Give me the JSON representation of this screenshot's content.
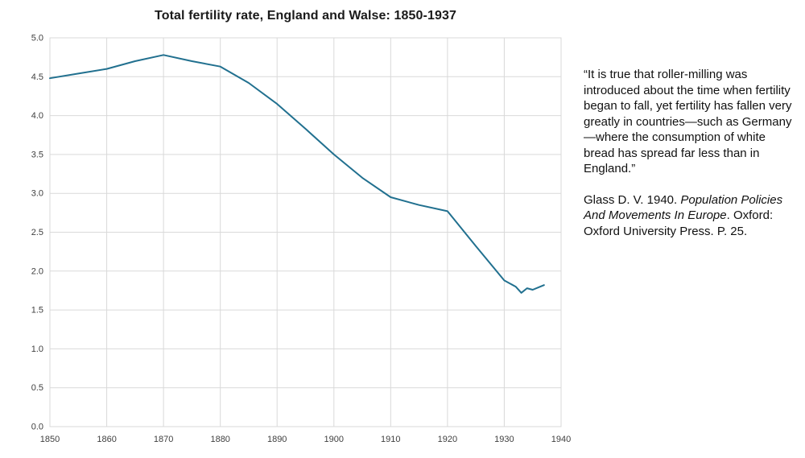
{
  "title": "Total fertility rate, England and Walse: 1850-1937",
  "quote": {
    "text": "“It is true that roller-milling was introduced about the time when fertility began to fall, yet fertility has fallen very greatly in countries—such as Germany—where the consumption of white bread has spread far less than in England.”",
    "citation_prefix": "Glass D. V. 1940. ",
    "citation_title": "Population Policies And Movements In Europe",
    "citation_suffix": ". Oxford: Oxford University Press. P. 25."
  },
  "chart_data": {
    "type": "line",
    "title": "Total fertility rate, England and Walse: 1850-1937",
    "series_name": "Total fertility rate, England and Wales",
    "x": [
      1850,
      1855,
      1860,
      1865,
      1870,
      1875,
      1880,
      1885,
      1890,
      1895,
      1900,
      1905,
      1910,
      1915,
      1920,
      1925,
      1930,
      1932,
      1933,
      1934,
      1935,
      1936,
      1937
    ],
    "y": [
      4.48,
      4.54,
      4.6,
      4.7,
      4.78,
      4.7,
      4.63,
      4.42,
      4.15,
      3.83,
      3.5,
      3.2,
      2.95,
      2.85,
      2.77,
      2.32,
      1.88,
      1.8,
      1.72,
      1.78,
      1.76,
      1.79,
      1.82
    ],
    "xlim": [
      1850,
      1940
    ],
    "ylim": [
      0.0,
      5.0
    ],
    "xticks": [
      1850,
      1860,
      1870,
      1880,
      1890,
      1900,
      1910,
      1920,
      1930,
      1940
    ],
    "yticks": [
      0.0,
      0.5,
      1.0,
      1.5,
      2.0,
      2.5,
      3.0,
      3.5,
      4.0,
      4.5,
      5.0
    ],
    "xlabel": "",
    "ylabel": "",
    "grid": true,
    "legend": "none",
    "line_color": "#21708f",
    "grid_color": "#d9d9d9",
    "tick_label_color": "#404040"
  }
}
